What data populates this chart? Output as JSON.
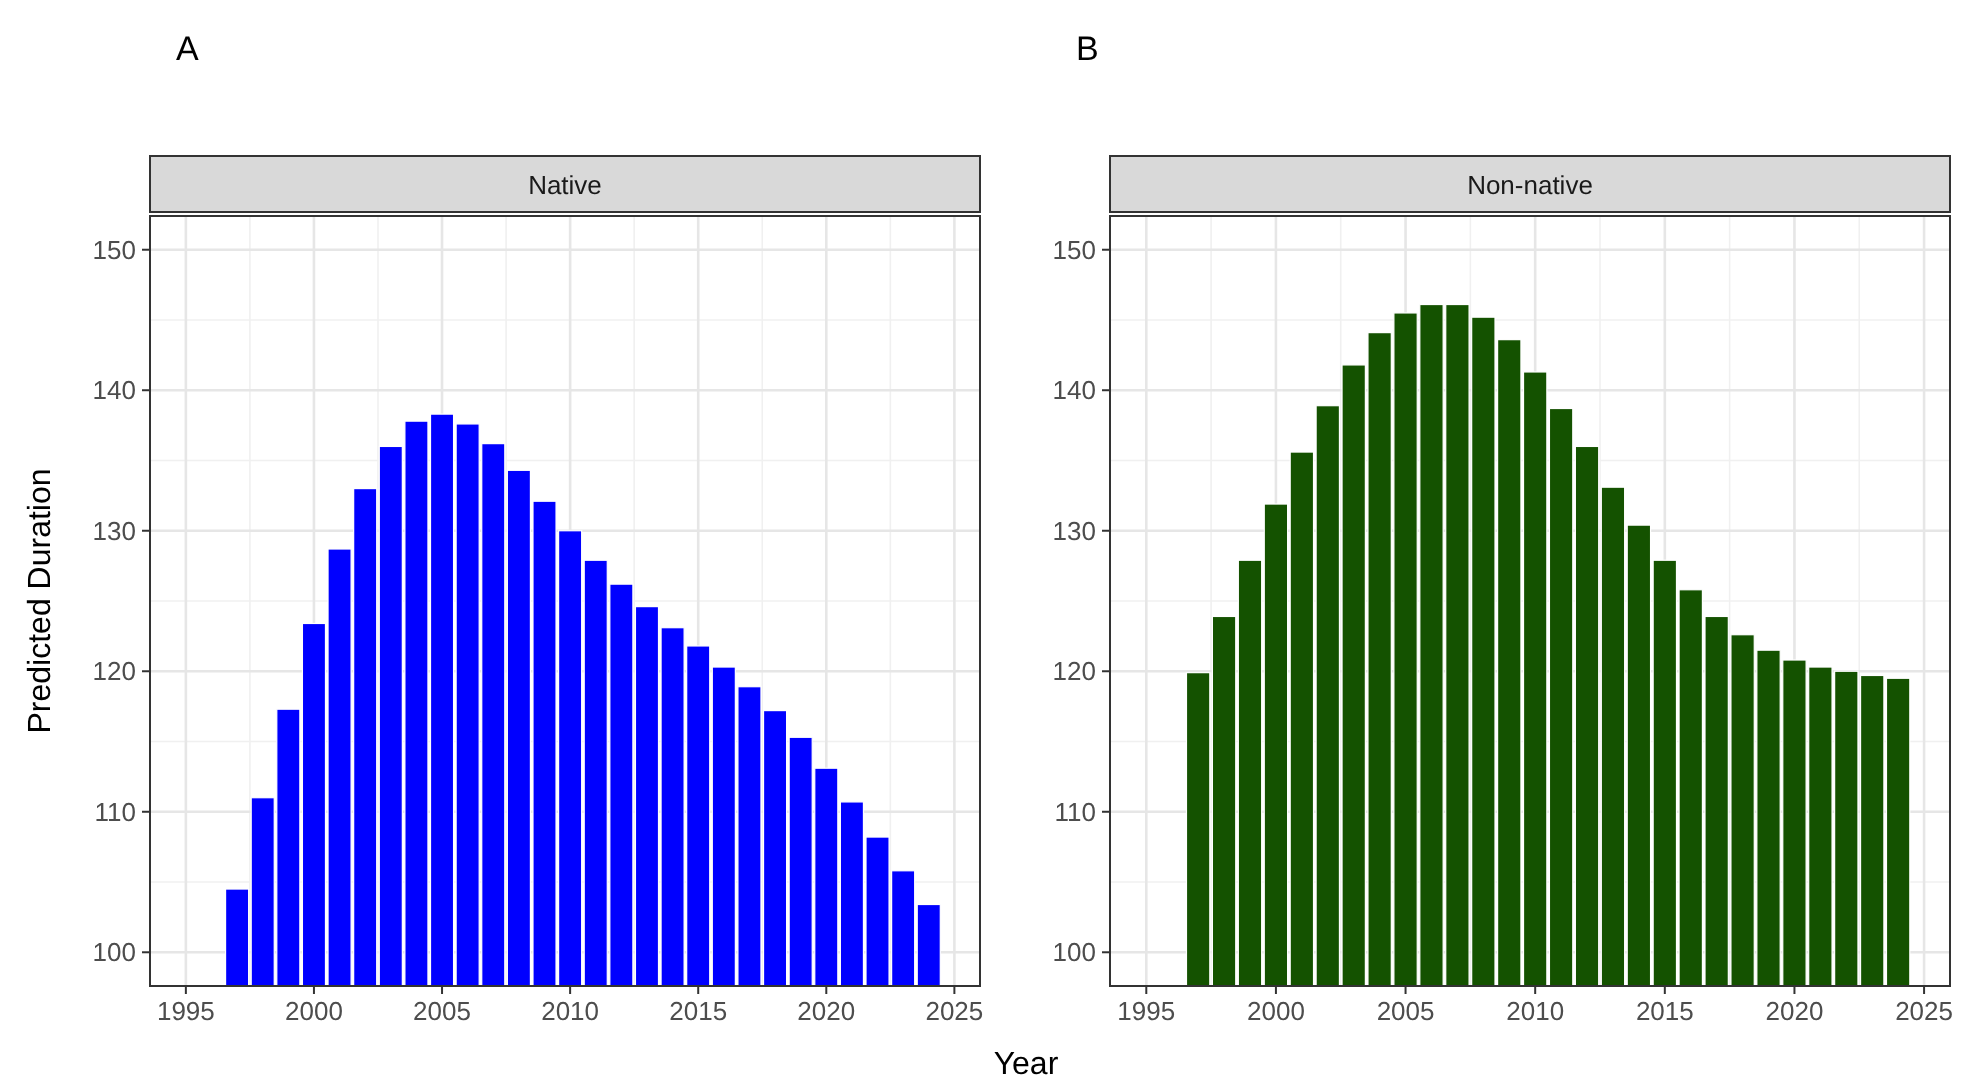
{
  "chart_data": [
    {
      "type": "bar",
      "title": "Native",
      "ylabel": "Predicted Duration",
      "xlabel": "Year",
      "annotations": [
        "A"
      ],
      "grid": true,
      "xlim": [
        1993.6,
        2026
      ],
      "xticks": [
        1995,
        2000,
        2005,
        2010,
        2015,
        2020,
        2025
      ],
      "ylim": [
        97.6,
        152.4
      ],
      "yticks": [
        100,
        110,
        120,
        130,
        140,
        150
      ],
      "x": [
        1997,
        1998,
        1999,
        2000,
        2001,
        2002,
        2003,
        2004,
        2005,
        2006,
        2007,
        2008,
        2009,
        2010,
        2011,
        2012,
        2013,
        2014,
        2015,
        2016,
        2017,
        2018,
        2019,
        2020,
        2021,
        2022,
        2023,
        2024
      ],
      "series": [
        {
          "color": "#0000ff",
          "values": [
            104.5,
            111,
            117.3,
            123.4,
            128.7,
            133,
            136,
            137.8,
            138.3,
            137.6,
            136.2,
            134.3,
            132.1,
            130,
            127.9,
            126.2,
            124.6,
            123.1,
            121.8,
            120.3,
            118.9,
            117.2,
            115.3,
            113.1,
            110.7,
            108.2,
            105.8,
            103.4
          ]
        }
      ]
    },
    {
      "type": "bar",
      "title": "Non-native",
      "annotations": [
        "B"
      ],
      "grid": true,
      "xlim": [
        1993.6,
        2026
      ],
      "xticks": [
        1995,
        2000,
        2005,
        2010,
        2015,
        2020,
        2025
      ],
      "ylim": [
        97.6,
        152.4
      ],
      "yticks": [
        100,
        110,
        120,
        130,
        140,
        150
      ],
      "x": [
        1997,
        1998,
        1999,
        2000,
        2001,
        2002,
        2003,
        2004,
        2005,
        2006,
        2007,
        2008,
        2009,
        2010,
        2011,
        2012,
        2013,
        2014,
        2015,
        2016,
        2017,
        2018,
        2019,
        2020,
        2021,
        2022,
        2023,
        2024
      ],
      "series": [
        {
          "color": "#145200",
          "values": [
            119.9,
            123.9,
            127.9,
            131.9,
            135.6,
            138.9,
            141.8,
            144.1,
            145.5,
            146.1,
            146.1,
            145.2,
            143.6,
            141.3,
            138.7,
            136,
            133.1,
            130.4,
            127.9,
            125.8,
            123.9,
            122.6,
            121.5,
            120.8,
            120.3,
            120,
            119.7,
            119.5
          ]
        }
      ]
    }
  ]
}
